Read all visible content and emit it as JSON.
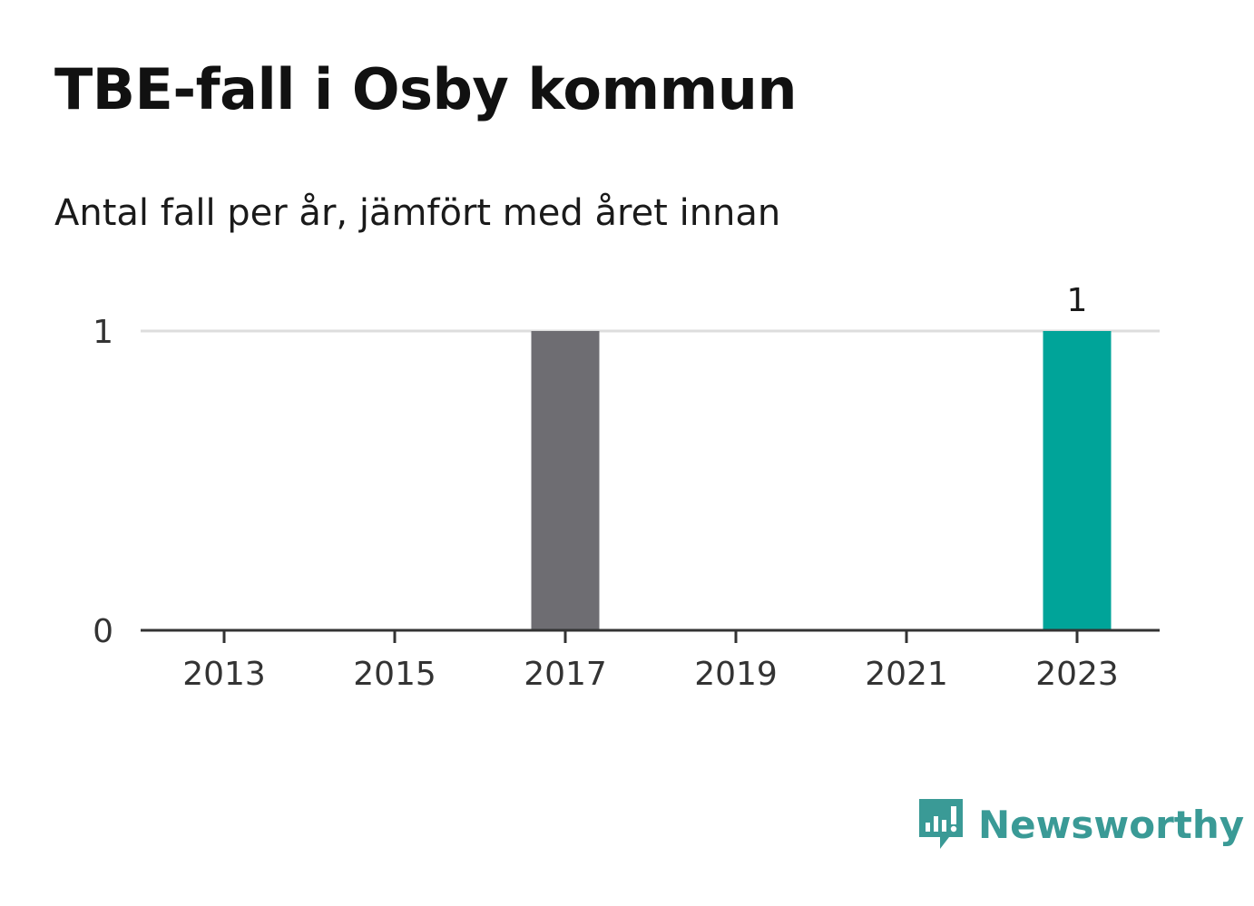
{
  "header": {
    "title": "TBE-fall i Osby kommun",
    "subtitle": "Antal fall per år, jämfört med året innan"
  },
  "brand": {
    "name": "Newsworthy",
    "color": "#3a9a96"
  },
  "chart_data": {
    "type": "bar",
    "title": "TBE-fall i Osby kommun",
    "subtitle": "Antal fall per år, jämfört med året innan",
    "categories": [
      "2013",
      "2014",
      "2015",
      "2016",
      "2017",
      "2018",
      "2019",
      "2020",
      "2021",
      "2022",
      "2023"
    ],
    "values": [
      0,
      0,
      0,
      0,
      1,
      0,
      0,
      0,
      0,
      0,
      1
    ],
    "x_tick_labels": [
      "2013",
      "2015",
      "2017",
      "2019",
      "2021",
      "2023"
    ],
    "y_tick_labels": [
      "0",
      "1"
    ],
    "ylim": [
      0,
      1
    ],
    "grid": true,
    "highlight_category": "2023",
    "data_labels": [
      {
        "category": "2023",
        "label": "1"
      }
    ],
    "colors": {
      "default_bar": "#6e6d72",
      "highlight_bar": "#00a499",
      "grid": "#dddddd",
      "axis": "#333333"
    }
  }
}
